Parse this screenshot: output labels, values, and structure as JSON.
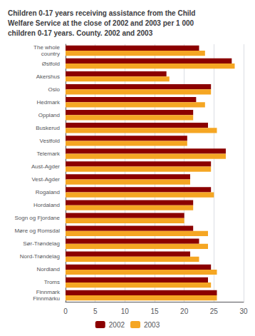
{
  "chart_data": {
    "type": "bar",
    "orientation": "horizontal",
    "title": "Children 0-17 years receiving assistance from the Child\nWelfare Service at the close of 2002 and 2003 per 1 000\nchildren 0-17 years. County. 2002 and 2003",
    "categories": [
      "The whole\ncountry",
      "Østfold",
      "Akershus",
      "Oslo",
      "Hedmark",
      "Oppland",
      "Buskerud",
      "Vestfold",
      "Telemark",
      "Aust-Agder",
      "Vest-Agder",
      "Rogaland",
      "Hordaland",
      "Sogn og Fjordane",
      "Møre og Romsdal",
      "Sør-Trøndelag",
      "Nord-Trøndelag",
      "Nordland",
      "Troms",
      "Finnmark\nFinnmárku"
    ],
    "series": [
      {
        "name": "2002",
        "color": "#8B0000",
        "values": [
          22.5,
          28.0,
          17.0,
          24.5,
          22.0,
          21.5,
          24.0,
          20.5,
          27.0,
          24.5,
          21.0,
          24.5,
          21.5,
          20.0,
          21.5,
          22.5,
          21.0,
          24.5,
          24.0,
          25.5
        ]
      },
      {
        "name": "2003",
        "color": "#F5A623",
        "values": [
          23.5,
          28.5,
          17.5,
          24.5,
          23.5,
          21.5,
          25.5,
          20.5,
          27.0,
          24.5,
          21.0,
          25.0,
          21.5,
          20.0,
          24.0,
          24.0,
          22.5,
          25.5,
          24.5,
          25.5
        ]
      }
    ],
    "xlim": [
      0,
      30
    ],
    "xticks": [
      0,
      5,
      10,
      15,
      20,
      25,
      30
    ],
    "grid": true,
    "legend": "bottom"
  }
}
